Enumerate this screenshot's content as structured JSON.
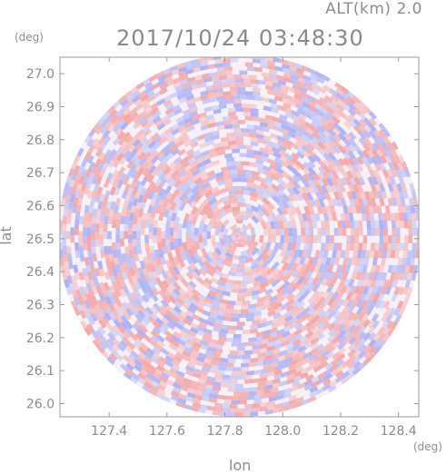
{
  "header": {
    "altitude_label": "ALT(km) 2.0",
    "timestamp": "2017/10/24 03:48:30"
  },
  "axes": {
    "y_unit": "(deg)",
    "x_unit": "(deg)",
    "y_label": "lat",
    "x_label": "lon"
  },
  "colors": {
    "positive": "#f4a3a3",
    "negative": "#a9aef5",
    "neutral": "#ffffff",
    "axis": "#9a9a9a"
  },
  "chart_data": {
    "type": "heatmap",
    "title": "2017/10/24 03:48:30",
    "subtitle": "ALT(km) 2.0",
    "xlabel": "lon",
    "ylabel": "lat",
    "xlim": [
      127.23,
      128.47
    ],
    "ylim": [
      25.96,
      27.05
    ],
    "x_ticks": [
      "127.4",
      "127.6",
      "127.8",
      "128.0",
      "128.2",
      "128.4"
    ],
    "y_ticks": [
      "26.0",
      "26.1",
      "26.2",
      "26.3",
      "26.4",
      "26.5",
      "26.6",
      "26.7",
      "26.8",
      "26.9",
      "27.0"
    ],
    "x_tick_values": [
      127.4,
      127.6,
      127.8,
      128.0,
      128.2,
      128.4
    ],
    "y_tick_values": [
      26.0,
      26.1,
      26.2,
      26.3,
      26.4,
      26.5,
      26.6,
      26.7,
      26.8,
      26.9,
      27.0
    ],
    "center": [
      127.85,
      26.51
    ],
    "radius_deg": 0.55,
    "colors": [
      "#f4a3a3",
      "#ffffff",
      "#a9aef5"
    ]
  }
}
